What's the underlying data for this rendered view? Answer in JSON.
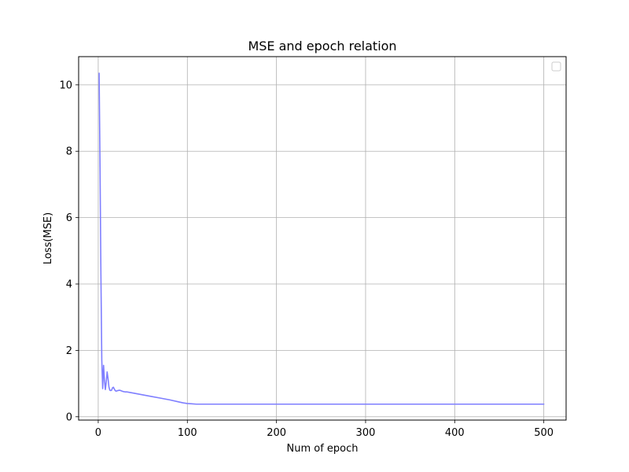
{
  "chart_data": {
    "type": "line",
    "title": "MSE and epoch relation",
    "xlabel": "Num of epoch",
    "ylabel": "Loss(MSE)",
    "xlim": [
      -22,
      525
    ],
    "ylim": [
      -0.1,
      10.85
    ],
    "xticks": [
      0,
      100,
      200,
      300,
      400,
      500
    ],
    "yticks": [
      0,
      2,
      4,
      6,
      8,
      10
    ],
    "grid": true,
    "legend": {
      "placement": "top-right",
      "entries": []
    },
    "series": [
      {
        "color": "#7f7fff",
        "x": [
          1,
          2,
          3,
          4,
          5,
          6,
          7,
          8,
          9,
          10,
          11,
          12,
          13,
          14,
          15,
          16,
          17,
          18,
          19,
          20,
          22,
          24,
          26,
          28,
          30,
          32,
          34,
          40,
          50,
          60,
          70,
          80,
          90,
          95,
          100,
          105,
          110,
          120,
          150,
          200,
          250,
          300,
          350,
          400,
          450,
          500
        ],
        "y": [
          10.35,
          7.6,
          4.3,
          1.7,
          0.85,
          1.55,
          1.1,
          0.82,
          1.05,
          1.35,
          1.15,
          0.9,
          0.8,
          0.79,
          0.8,
          0.87,
          0.89,
          0.84,
          0.79,
          0.77,
          0.79,
          0.8,
          0.78,
          0.76,
          0.75,
          0.75,
          0.74,
          0.71,
          0.66,
          0.61,
          0.56,
          0.51,
          0.45,
          0.42,
          0.4,
          0.39,
          0.38,
          0.38,
          0.38,
          0.38,
          0.38,
          0.38,
          0.38,
          0.38,
          0.38,
          0.38
        ]
      }
    ]
  }
}
